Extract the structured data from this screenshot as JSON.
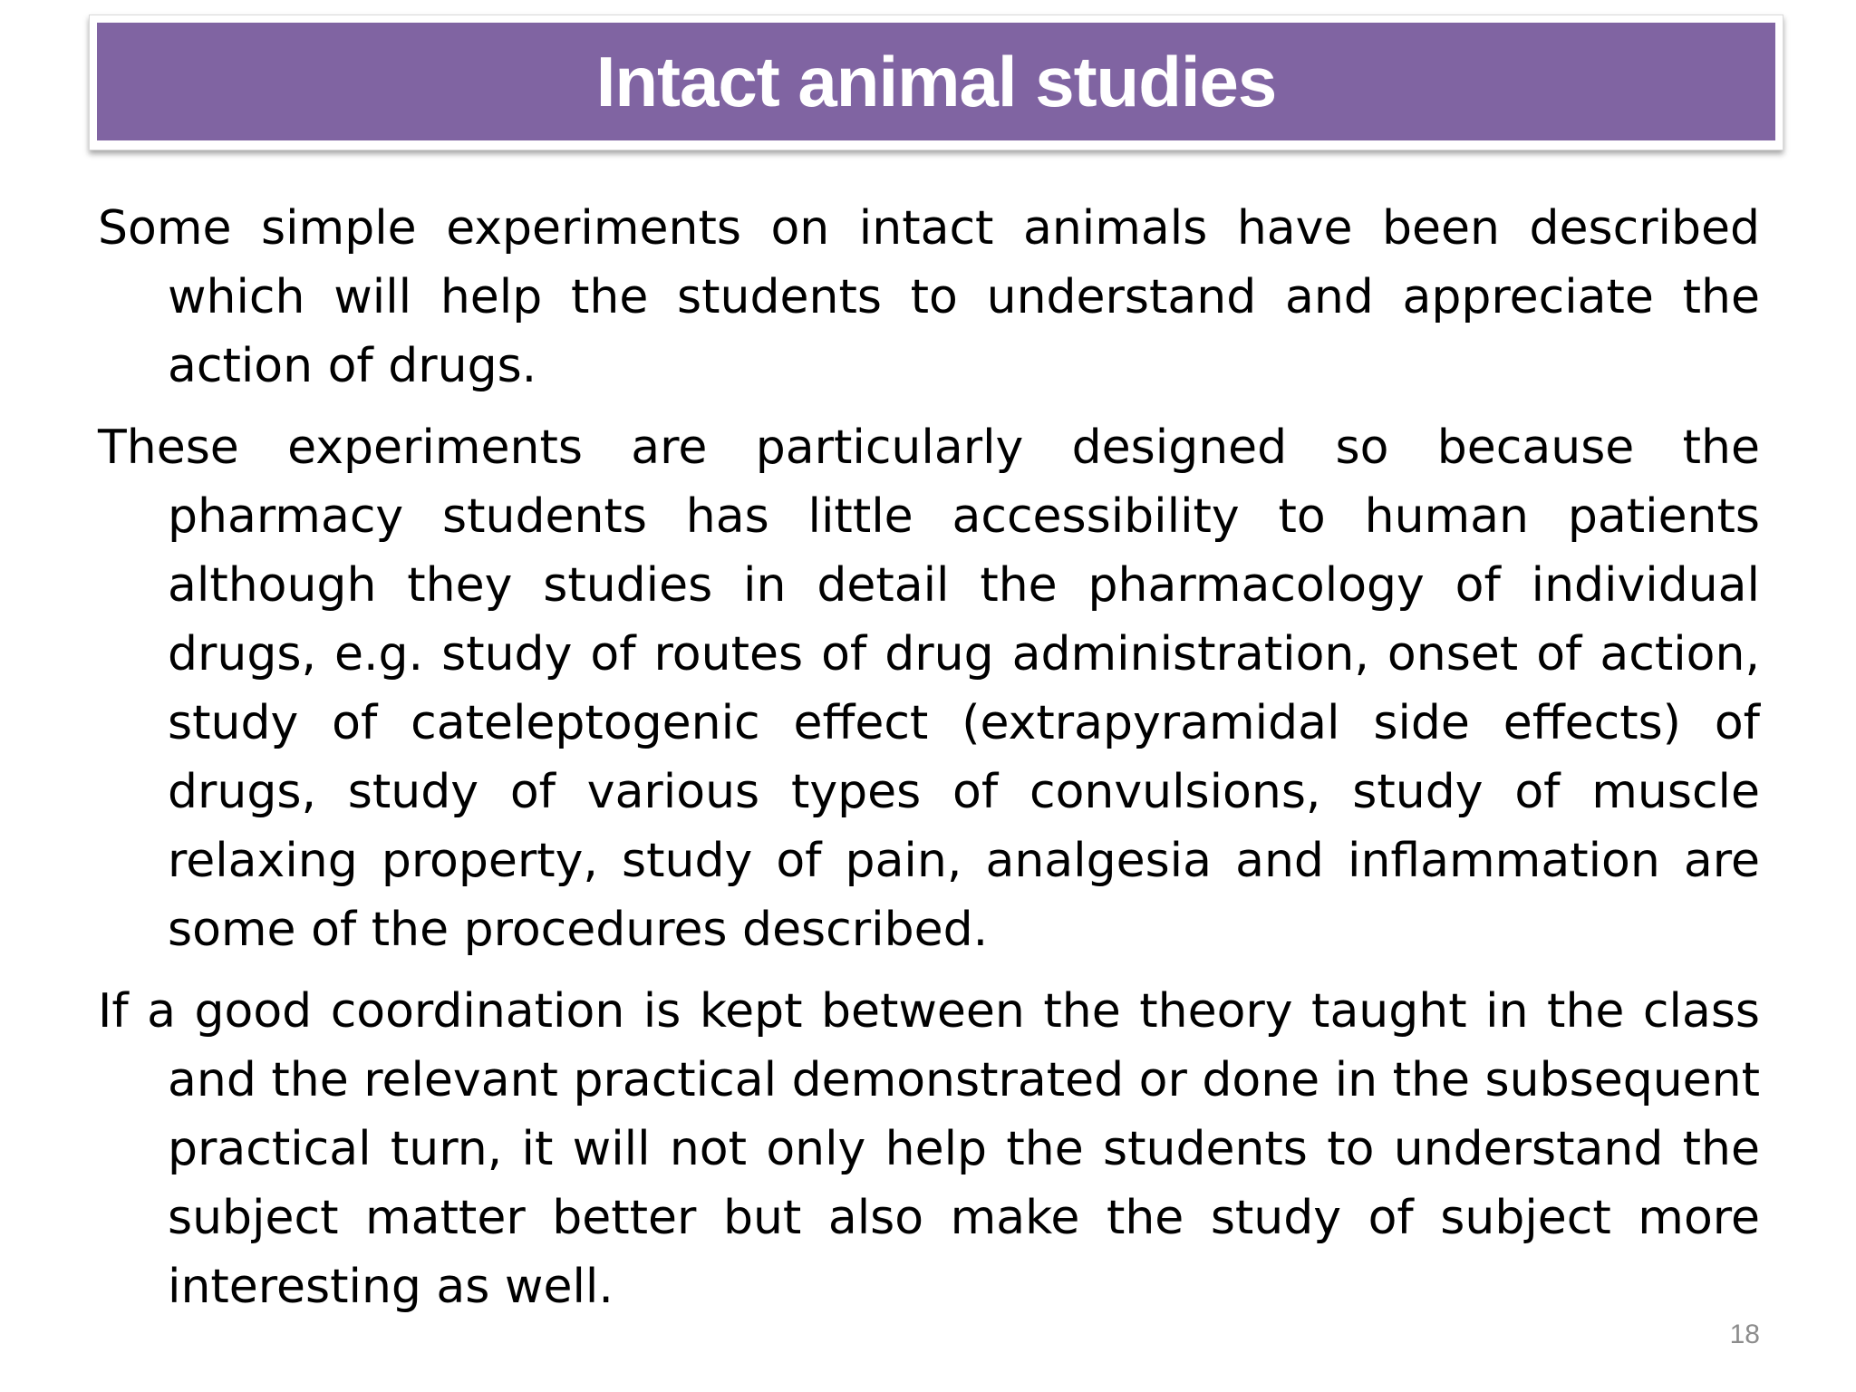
{
  "slide": {
    "title": "Intact animal studies",
    "paragraphs": [
      "Some simple experiments on intact animals have been described which will help the students to understand and appreciate the action of drugs.",
      "These experiments are particularly designed so because the pharmacy students has little accessibility to human patients although they studies in detail the pharmacology of individual drugs, e.g. study of routes of drug administration, onset of action, study of cateleptogenic effect (extrapyramidal side effects) of drugs, study of various types of convulsions, study of muscle relaxing property, study of pain, analgesia and inflammation are some of the procedures described.",
      "If a good coordination is kept between the theory taught in the class and the relevant practical demonstrated or done in the subsequent practical turn, it will not only help the students to understand the subject matter better but also make the study of subject more interesting as well."
    ],
    "page_number": "18"
  },
  "colors": {
    "title_bar": "#8064a2",
    "title_text": "#ffffff",
    "body_text": "#000000",
    "page_number": "#8c8c8c"
  }
}
